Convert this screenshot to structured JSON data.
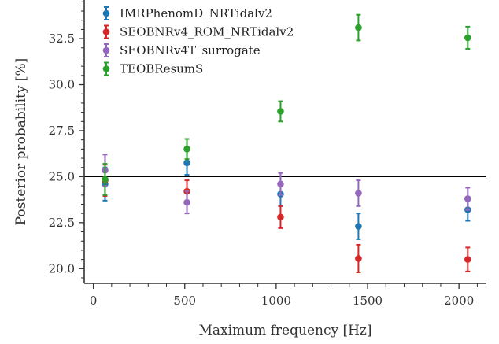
{
  "chart_data": {
    "type": "scatter",
    "title": "",
    "xlabel": "Maximum frequency [Hz]",
    "ylabel": "Posterior probability [%]",
    "xlim": [
      -50,
      2150
    ],
    "ylim": [
      19.2,
      34.6
    ],
    "xticks": [
      0,
      500,
      1000,
      1500,
      2000
    ],
    "xtick_labels": [
      "0",
      "500",
      "1000",
      "1500",
      "2000"
    ],
    "yticks": [
      20.0,
      22.5,
      25.0,
      27.5,
      30.0,
      32.5
    ],
    "ytick_labels": [
      "20.0",
      "22.5",
      "25.0",
      "27.5",
      "30.0",
      "32.5"
    ],
    "reference_line": 25.0,
    "grid": false,
    "legend_position": "top-left",
    "series": [
      {
        "name": "IMRPhenomD_NRTidalv2",
        "color": "#1f77b4",
        "points": [
          {
            "x": 64,
            "y": 24.6,
            "err": 0.9
          },
          {
            "x": 512,
            "y": 25.75,
            "err": 0.65
          },
          {
            "x": 1024,
            "y": 24.05,
            "err": 0.65
          },
          {
            "x": 1450,
            "y": 22.3,
            "err": 0.7
          },
          {
            "x": 2048,
            "y": 23.2,
            "err": 0.6
          }
        ]
      },
      {
        "name": "SEOBNRv4_ROM_NRTidalv2",
        "color": "#d62728",
        "points": [
          {
            "x": 64,
            "y": 24.8,
            "err": 0.85
          },
          {
            "x": 512,
            "y": 24.2,
            "err": 0.6
          },
          {
            "x": 1024,
            "y": 22.8,
            "err": 0.6
          },
          {
            "x": 1450,
            "y": 20.55,
            "err": 0.75
          },
          {
            "x": 2048,
            "y": 20.5,
            "err": 0.65
          }
        ]
      },
      {
        "name": "SEOBNRv4T_surrogate",
        "color": "#9467bd",
        "points": [
          {
            "x": 64,
            "y": 25.35,
            "err": 0.85
          },
          {
            "x": 512,
            "y": 23.6,
            "err": 0.6
          },
          {
            "x": 1024,
            "y": 24.6,
            "err": 0.6
          },
          {
            "x": 1450,
            "y": 24.1,
            "err": 0.7
          },
          {
            "x": 2048,
            "y": 23.8,
            "err": 0.6
          }
        ]
      },
      {
        "name": "TEOBResumS",
        "color": "#2ca02c",
        "points": [
          {
            "x": 64,
            "y": 24.85,
            "err": 0.85
          },
          {
            "x": 512,
            "y": 26.5,
            "err": 0.55
          },
          {
            "x": 1024,
            "y": 28.55,
            "err": 0.55
          },
          {
            "x": 1450,
            "y": 33.1,
            "err": 0.7
          },
          {
            "x": 2048,
            "y": 32.55,
            "err": 0.6
          }
        ]
      }
    ]
  }
}
